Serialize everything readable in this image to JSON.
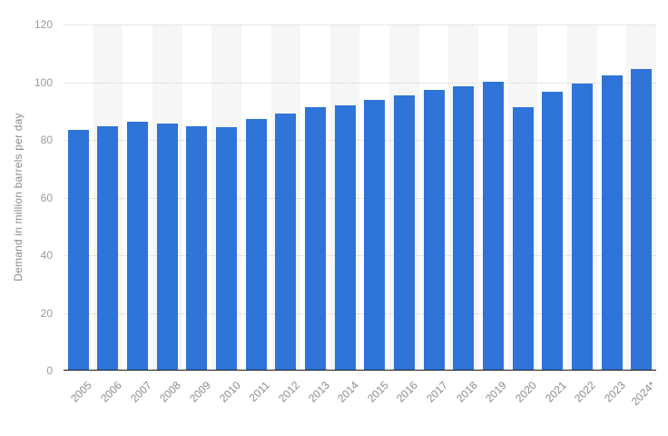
{
  "chart_data": {
    "type": "bar",
    "title": "",
    "xlabel": "",
    "ylabel": "Demand in million barrels per day",
    "categories": [
      "2005",
      "2006",
      "2007",
      "2008",
      "2009",
      "2010",
      "2011",
      "2012",
      "2013",
      "2014",
      "2015",
      "2016",
      "2017",
      "2018",
      "2019",
      "2020",
      "2021",
      "2022",
      "2023",
      "2024*"
    ],
    "values": [
      83.3,
      84.3,
      86.1,
      85.5,
      84.3,
      84.2,
      86.8,
      88.7,
      90.9,
      91.8,
      93.5,
      95.2,
      97.1,
      98.4,
      99.7,
      91.0,
      96.5,
      99.3,
      102.1,
      104.2
    ],
    "ylim": [
      0,
      120
    ],
    "yticks": [
      0,
      20,
      40,
      60,
      80,
      100,
      120
    ],
    "grid": "horizontal-dotted",
    "legend": "none",
    "colors": {
      "bar": "#2e74d9",
      "column_band": "#f6f6f6",
      "gridline": "#cfcfcf",
      "axis_line": "#1a1a1a",
      "y_tick_label": "#9a9a9a",
      "x_tick_label": "#8c8c8c",
      "background": "#ffffff"
    }
  }
}
